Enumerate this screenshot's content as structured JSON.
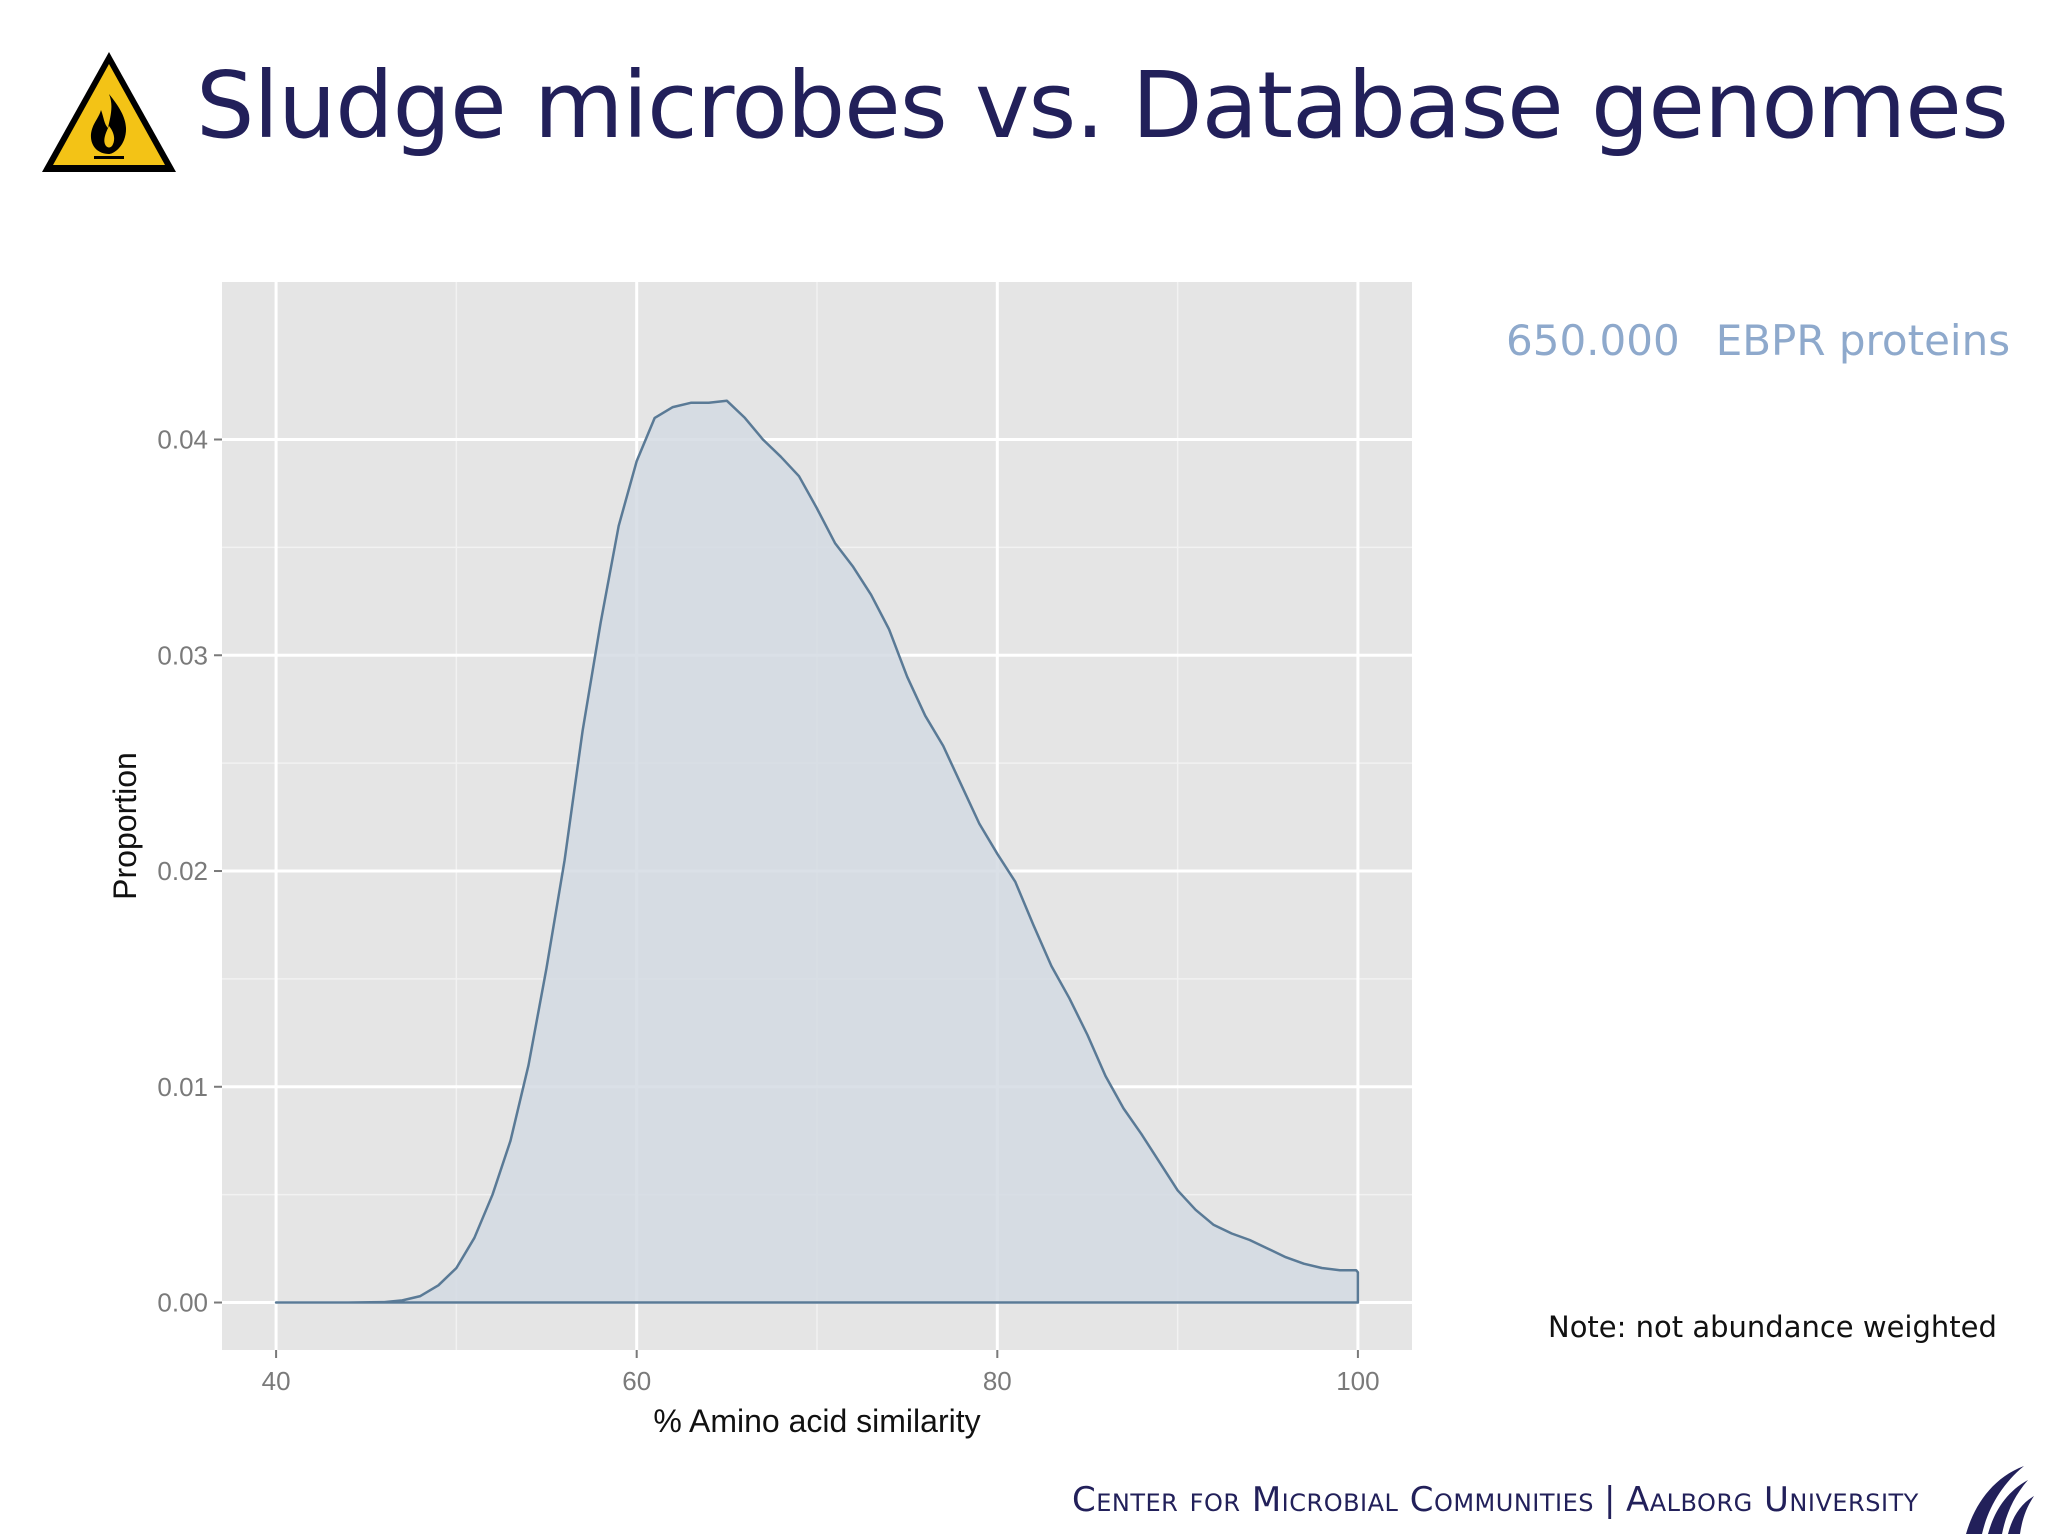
{
  "slide": {
    "title": "Sludge microbes vs. Database genomes",
    "side_note_count": "650.000",
    "side_note_label": "EBPR proteins",
    "weight_note": "Note: not abundance weighted",
    "footer_left": "Center for Microbial Communities",
    "footer_separator": "|",
    "footer_right": "Aalborg University",
    "warning_icon": "flammable-warning-icon",
    "logo_icon": "aalborg-university-logo-icon"
  },
  "chart_data": {
    "type": "area",
    "title": "",
    "xlabel": "% Amino acid similarity",
    "ylabel": "Proportion",
    "xlim": [
      37,
      103
    ],
    "ylim": [
      -0.0022,
      0.0473
    ],
    "xticks": [
      40,
      60,
      80,
      100
    ],
    "yticks": [
      0.0,
      0.01,
      0.02,
      0.03,
      0.04
    ],
    "xtick_labels": [
      "40",
      "60",
      "80",
      "100"
    ],
    "ytick_labels": [
      "0.00",
      "0.01",
      "0.02",
      "0.03",
      "0.04"
    ],
    "grid": true,
    "legend": "none",
    "colors": {
      "panel": "#e5e5e5",
      "grid": "#ffffff",
      "fill": "#d3dbe3",
      "line": "#5a7a96"
    },
    "series": [
      {
        "x": [
          40,
          44,
          46,
          47,
          48,
          49,
          50,
          51,
          52,
          53,
          54,
          55,
          56,
          57,
          58,
          59,
          60,
          61,
          62,
          63,
          64,
          65,
          66,
          67,
          68,
          69,
          70,
          71,
          72,
          73,
          74,
          75,
          76,
          77,
          78,
          79,
          80,
          81,
          82,
          83,
          84,
          85,
          86,
          87,
          88,
          89,
          90,
          91,
          92,
          93,
          94,
          95,
          96,
          97,
          98,
          99,
          99.9,
          100
        ],
        "y": [
          0,
          0,
          2e-05,
          0.0001,
          0.0003,
          0.0008,
          0.0016,
          0.003,
          0.005,
          0.0075,
          0.011,
          0.0155,
          0.0205,
          0.0265,
          0.0315,
          0.036,
          0.039,
          0.041,
          0.0415,
          0.0417,
          0.0417,
          0.0418,
          0.041,
          0.04,
          0.0392,
          0.0383,
          0.0368,
          0.0352,
          0.0341,
          0.0328,
          0.0312,
          0.029,
          0.0272,
          0.0258,
          0.024,
          0.0222,
          0.0208,
          0.0195,
          0.0175,
          0.0156,
          0.0141,
          0.0124,
          0.0105,
          0.009,
          0.0078,
          0.0065,
          0.0052,
          0.0043,
          0.0036,
          0.0032,
          0.0029,
          0.0025,
          0.0021,
          0.0018,
          0.0016,
          0.0015,
          0.0015,
          0.0014
        ]
      }
    ]
  }
}
